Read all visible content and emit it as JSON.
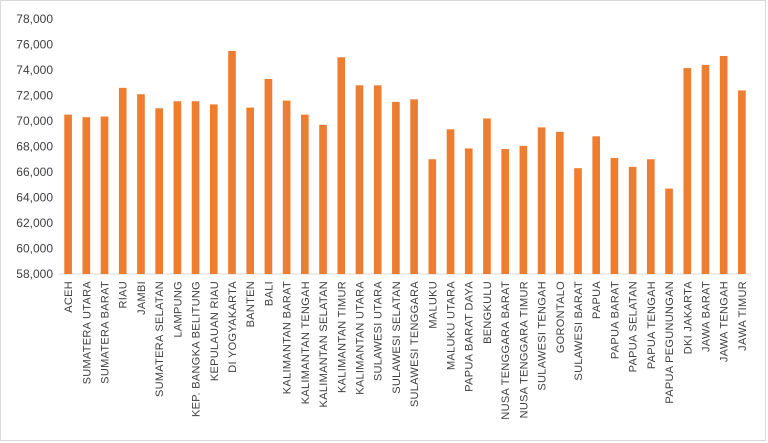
{
  "chart_data": {
    "type": "bar",
    "title": "",
    "xlabel": "",
    "ylabel": "",
    "ylim": [
      58000,
      78000
    ],
    "y_ticks": [
      "58,000",
      "60,000",
      "62,000",
      "64,000",
      "66,000",
      "68,000",
      "70,000",
      "72,000",
      "74,000",
      "76,000",
      "78,000"
    ],
    "grid": false,
    "bar_color": "#ED7D31",
    "categories": [
      "ACEH",
      "SUMATERA UTARA",
      "SUMATERA BARAT",
      "RIAU",
      "JAMBI",
      "SUMATERA SELATAN",
      "LAMPUNG",
      "KEP. BANGKA BELITUNG",
      "KEPULAUAN RIAU",
      "DI YOGYAKARTA",
      "BANTEN",
      "BALI",
      "KALIMANTAN BARAT",
      "KALIMANTAN TENGAH",
      "KALIMANTAN SELATAN",
      "KALIMANTAN TIMUR",
      "KALIMANTAN UTARA",
      "SULAWESI UTARA",
      "SULAWESI SELATAN",
      "SULAWESI TENGGARA",
      "MALUKU",
      "MALUKU UTARA",
      "PAPUA BARAT DAYA",
      "BENGKULU",
      "NUSA TENGGARA BARAT",
      "NUSA TENGGARA TIMUR",
      "SULAWESI TENGAH",
      "GORONTALO",
      "SULAWESI BARAT",
      "PAPUA",
      "PAPUA BARAT",
      "PAPUA SELATAN",
      "PAPUA TENGAH",
      "PAPUA PEGUNUNGAN",
      "DKI JAKARTA",
      "JAWA BARAT",
      "JAWA TENGAH",
      "JAWA TIMUR"
    ],
    "values": [
      70500,
      70300,
      70350,
      72600,
      72100,
      71000,
      71550,
      71550,
      71300,
      75500,
      71050,
      73300,
      71600,
      70500,
      69700,
      75000,
      72800,
      72800,
      71500,
      71700,
      67000,
      69350,
      67850,
      70200,
      67800,
      68050,
      69500,
      69150,
      66300,
      68800,
      67100,
      66400,
      67000,
      64700,
      74150,
      74400,
      75100,
      72400
    ]
  }
}
